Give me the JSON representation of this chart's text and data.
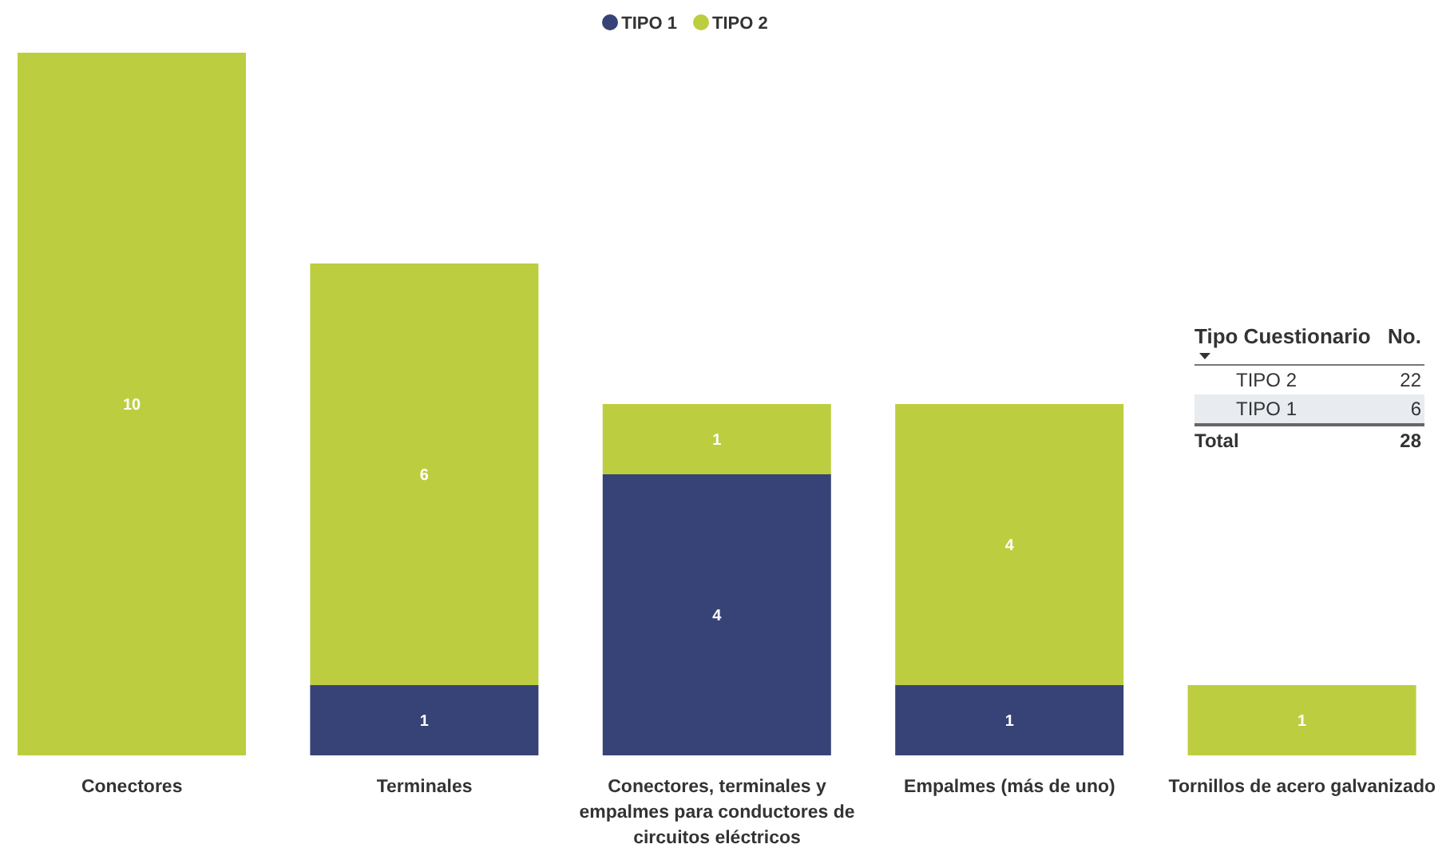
{
  "chart_data": [
    {
      "type": "bar",
      "stacked": true,
      "categories": [
        "Conectores",
        "Terminales",
        "Conectores, terminales y empalmes para conductores de circuitos eléctricos",
        "Empalmes (más de uno)",
        "Tornillos de acero galvanizado"
      ],
      "series": [
        {
          "name": "TIPO 1",
          "color": "#374376",
          "values": [
            null,
            1,
            4,
            1,
            null
          ]
        },
        {
          "name": "TIPO 2",
          "color": "#bcce3f",
          "values": [
            10,
            6,
            1,
            4,
            1
          ]
        }
      ],
      "data_labels": true,
      "legend": "top",
      "tick_labels": "x"
    },
    {
      "type": "other",
      "annotations": [
        "Tipo Cuestionario",
        "No.",
        "TIPO 2",
        "22",
        "TIPO 1",
        "6",
        "Total",
        "28"
      ]
    }
  ]
}
